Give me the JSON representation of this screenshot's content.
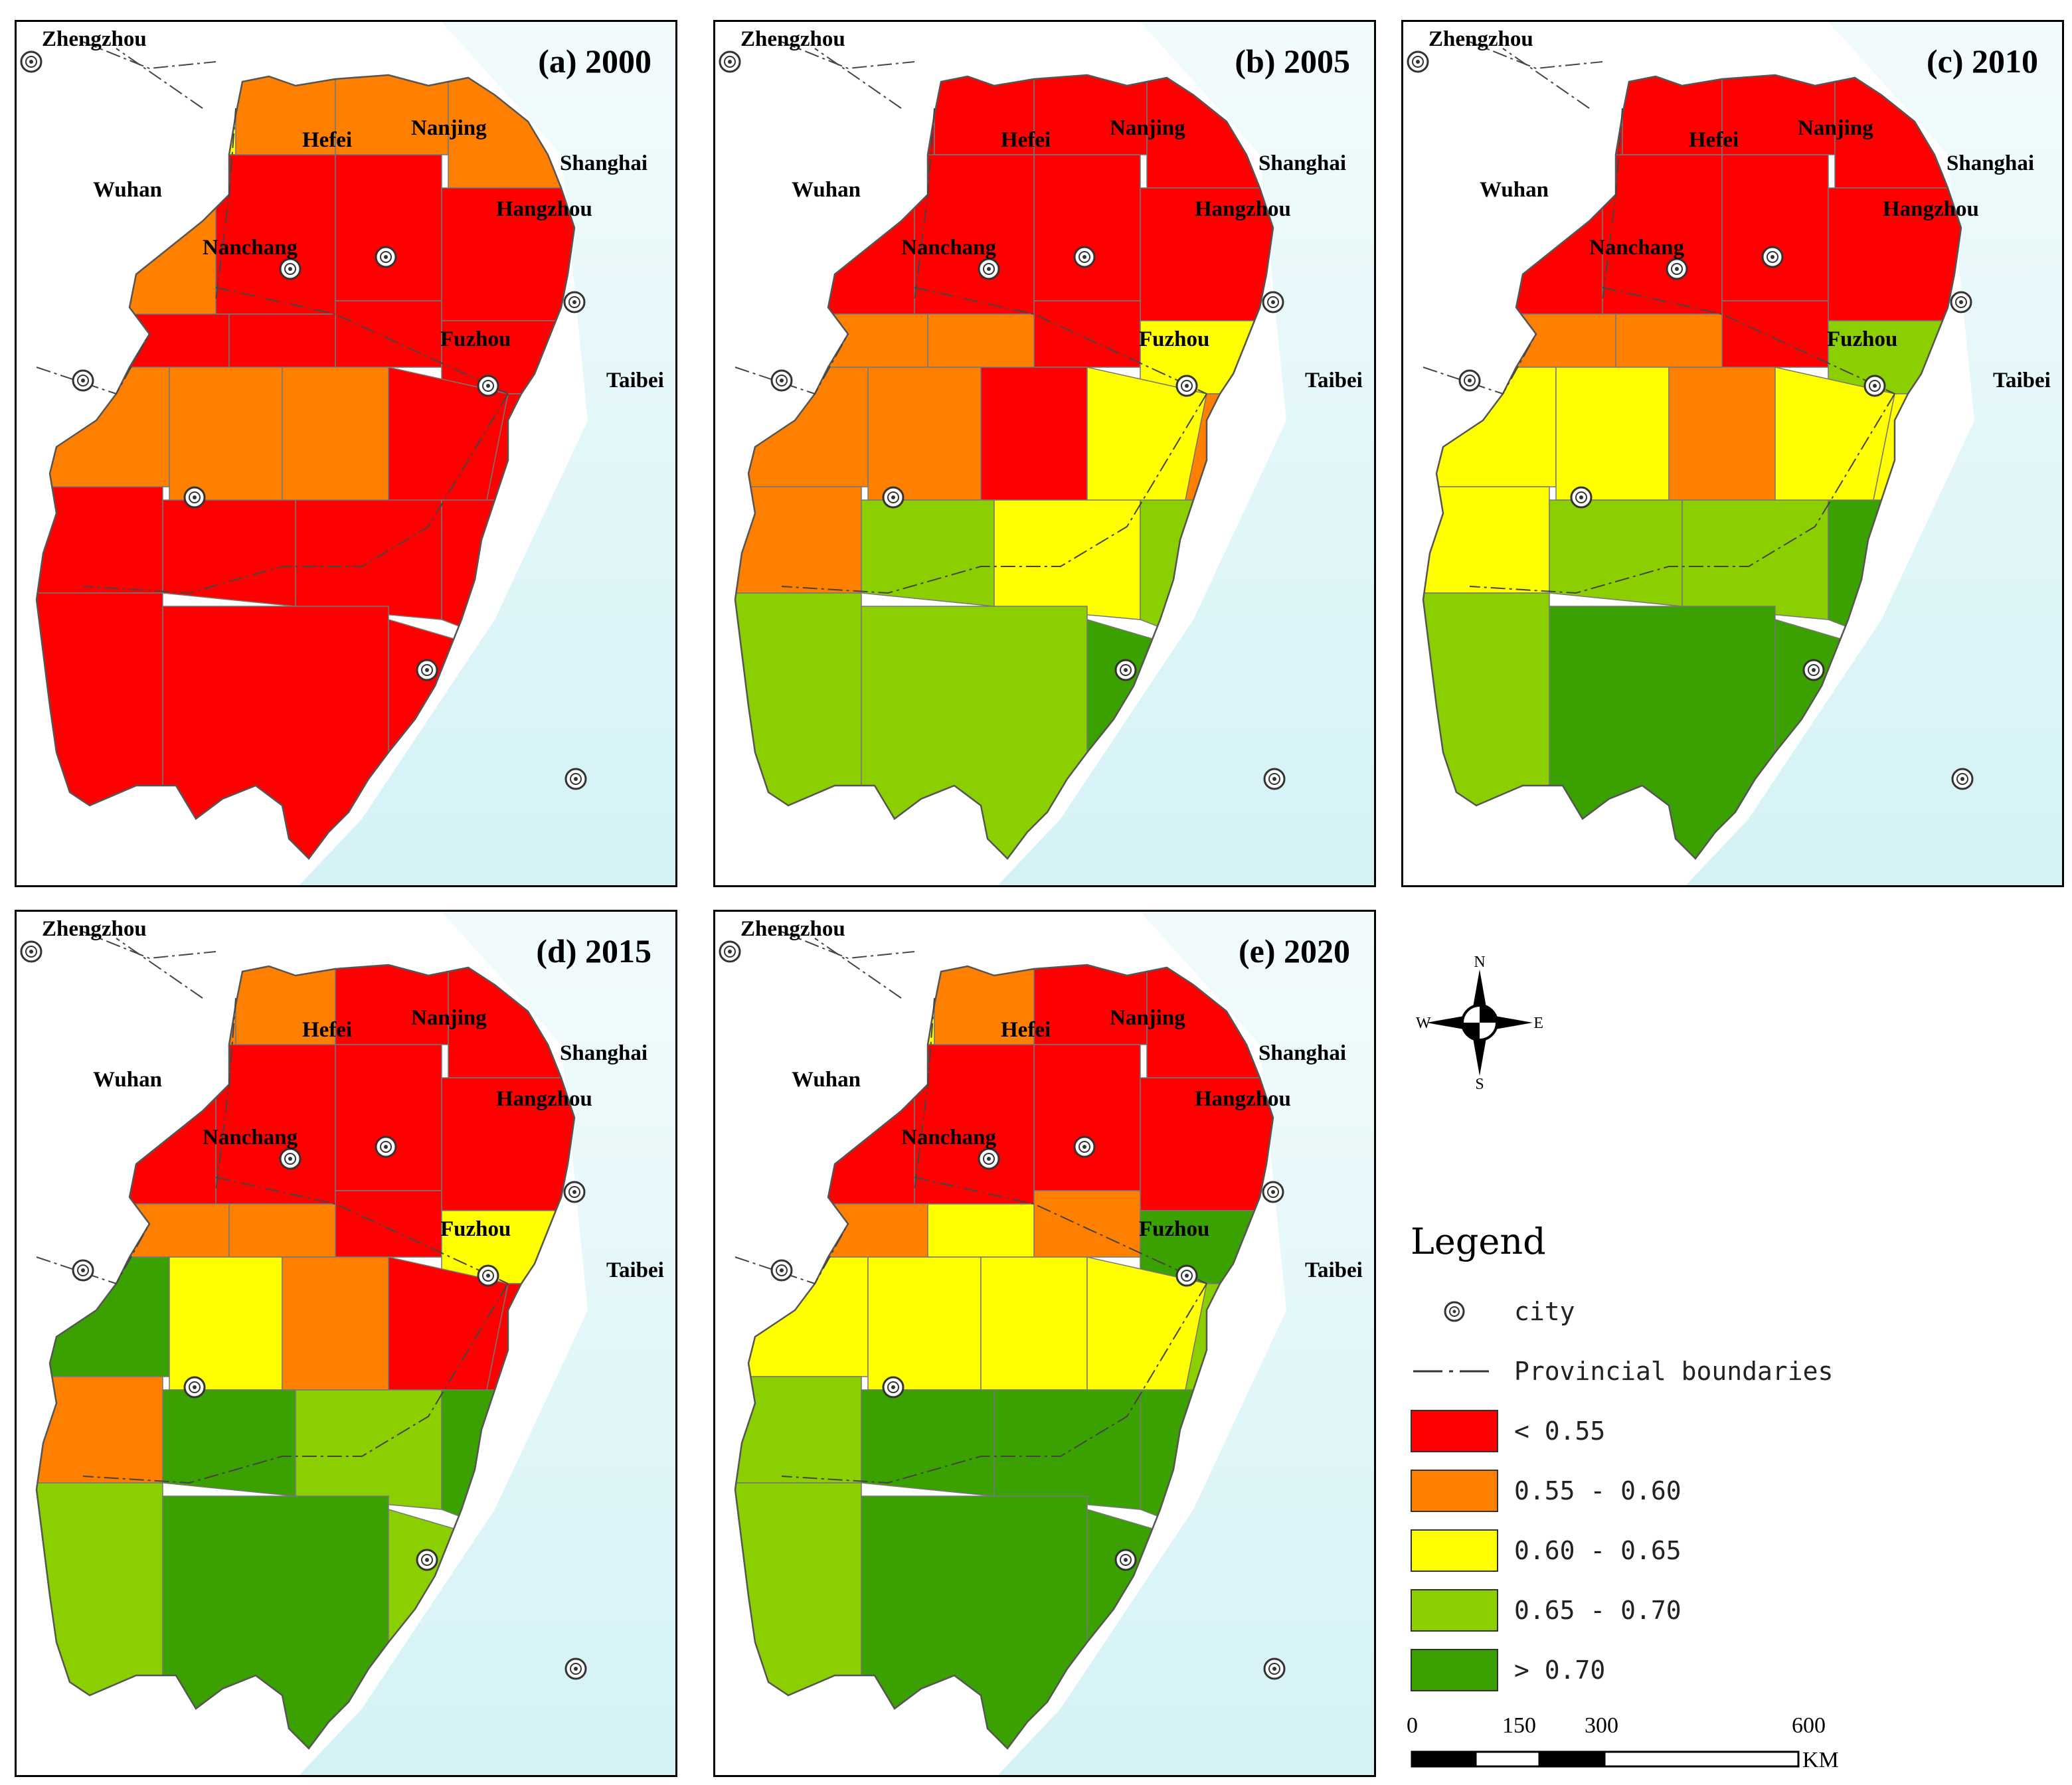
{
  "panels": [
    {
      "title": "(a) 2000",
      "regions": [
        2,
        1,
        1,
        1,
        1,
        0,
        0,
        0,
        0,
        0,
        0,
        0,
        1,
        1,
        1,
        0,
        0,
        0,
        0,
        0,
        0,
        0,
        0,
        0
      ]
    },
    {
      "title": "(b) 2005",
      "regions": [
        0,
        0,
        0,
        0,
        0,
        0,
        0,
        0,
        0,
        1,
        1,
        2,
        1,
        1,
        0,
        2,
        1,
        1,
        3,
        3,
        2,
        3,
        3,
        4
      ]
    },
    {
      "title": "(c) 2010",
      "regions": [
        0,
        0,
        0,
        0,
        0,
        0,
        0,
        0,
        0,
        1,
        1,
        3,
        2,
        2,
        1,
        2,
        2,
        2,
        3,
        3,
        3,
        4,
        4,
        4
      ]
    },
    {
      "title": "(d) 2015",
      "regions": [
        1,
        1,
        0,
        0,
        0,
        0,
        0,
        0,
        0,
        1,
        1,
        2,
        4,
        2,
        1,
        0,
        0,
        1,
        3,
        4,
        3,
        4,
        4,
        3
      ]
    },
    {
      "title": "(e) 2020",
      "regions": [
        2,
        1,
        0,
        0,
        0,
        0,
        0,
        0,
        1,
        1,
        2,
        4,
        2,
        2,
        2,
        2,
        3,
        3,
        3,
        4,
        4,
        4,
        4,
        4
      ]
    }
  ],
  "cities": [
    {
      "name": "Zhengzhou"
    },
    {
      "name": "Hefei"
    },
    {
      "name": "Nanjing"
    },
    {
      "name": "Shanghai"
    },
    {
      "name": "Wuhan"
    },
    {
      "name": "Hangzhou"
    },
    {
      "name": "Nanchang"
    },
    {
      "name": "Fuzhou"
    },
    {
      "name": "Taibei"
    }
  ],
  "compass": {
    "n": "N",
    "s": "S",
    "e": "E",
    "w": "W"
  },
  "legend": {
    "title": "Legend",
    "city_label": "city",
    "boundary_label": "Provincial boundaries",
    "classes": [
      {
        "label": "< 0.55",
        "color": "#ff0000"
      },
      {
        "label": "0.55 - 0.60",
        "color": "#ff7f00"
      },
      {
        "label": "0.60 - 0.65",
        "color": "#ffff00"
      },
      {
        "label": "0.65 - 0.70",
        "color": "#8ccf00"
      },
      {
        "label": "> 0.70",
        "color": "#3aa100"
      }
    ]
  },
  "scale": {
    "ticks": [
      "0",
      "150",
      "300",
      "600"
    ],
    "unit": "KM"
  }
}
